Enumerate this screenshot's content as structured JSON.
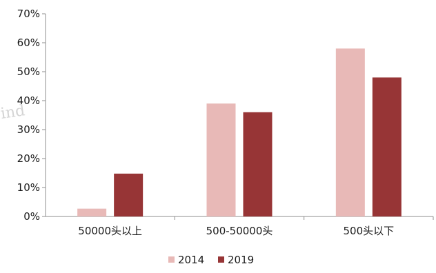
{
  "chart_data": {
    "type": "bar",
    "title": "",
    "xlabel": "",
    "ylabel": "",
    "categories": [
      "50000头以上",
      "500-50000头",
      "500头以下"
    ],
    "series": [
      {
        "name": "2014",
        "values": [
          2.7,
          39.0,
          58.0
        ],
        "color": "#e8b9b7"
      },
      {
        "name": "2019",
        "values": [
          14.8,
          36.0,
          48.0
        ],
        "color": "#973536"
      }
    ],
    "ylim": [
      0,
      70
    ],
    "yticks": [
      "0%",
      "10%",
      "20%",
      "30%",
      "40%",
      "50%",
      "60%",
      "70%"
    ],
    "grid": false,
    "legend_position": "bottom",
    "watermark": "ind"
  }
}
